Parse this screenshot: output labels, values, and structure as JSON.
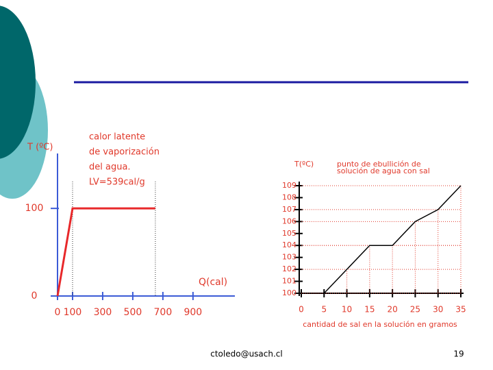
{
  "chart_data": [
    {
      "type": "line",
      "y_label": "T (ºC)",
      "x_label": "Q(cal)",
      "annotation": [
        "calor latente",
        "de vaporización",
        "del agua.",
        "LV=539cal/g"
      ],
      "x": [
        0,
        100,
        650
      ],
      "series": [
        {
          "color": "#e8282a",
          "values": [
            0,
            100,
            100
          ]
        }
      ],
      "xlim": [
        0,
        1160
      ],
      "xticks": [
        0,
        100,
        300,
        500,
        700,
        900
      ],
      "ylim": [
        0,
        158
      ],
      "yticks": [
        0,
        100
      ]
    },
    {
      "type": "line",
      "y_label": "T(ºC)",
      "title": [
        "punto de ebullición de",
        "solución de agua con sal"
      ],
      "x_label": "cantidad de sal en la solución en gramos",
      "x": [
        5,
        10,
        15,
        20,
        25,
        30,
        35
      ],
      "series": [
        {
          "color": "#000000",
          "values": [
            100,
            102,
            104,
            104,
            106,
            107,
            109
          ]
        }
      ],
      "xlim": [
        0,
        35
      ],
      "xticks": [
        0,
        5,
        10,
        15,
        20,
        25,
        30,
        35
      ],
      "ylim": [
        100,
        109
      ],
      "yticks": [
        100,
        101,
        102,
        103,
        104,
        105,
        106,
        107,
        108,
        109
      ]
    }
  ],
  "footer": {
    "email": "ctoledo@usach.cl",
    "page": "19"
  }
}
